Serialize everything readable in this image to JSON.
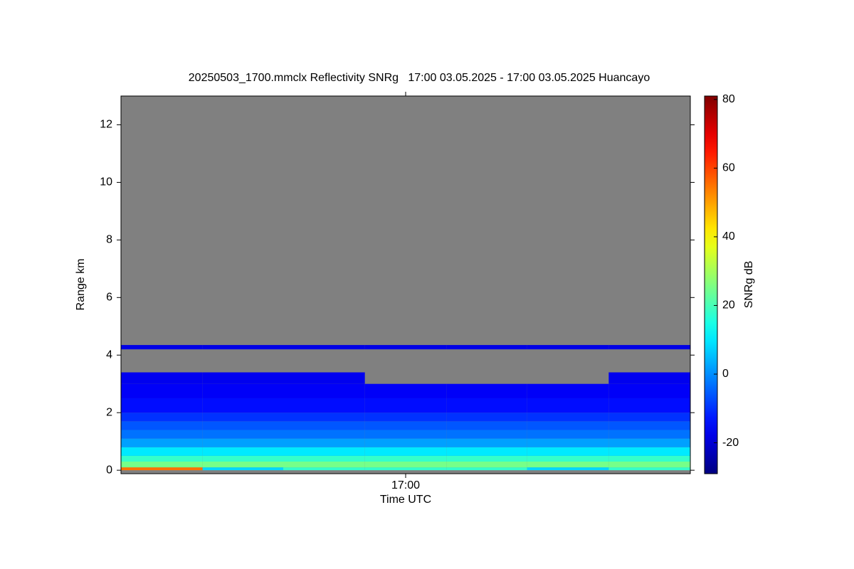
{
  "chart_data": {
    "type": "heatmap",
    "title": "20250503_1700.mmclx Reflectivity SNRg   17:00 03.05.2025 - 17:00 03.05.2025 Huancayo",
    "xlabel": "Time UTC",
    "ylabel": "Range km",
    "colorbar_label": "SNRg dB",
    "colormap": "jet",
    "missing_color": "#808080",
    "xlim": [
      61170,
      61230
    ],
    "xticks": [
      {
        "value": 61200,
        "label": "17:00"
      }
    ],
    "ylim": [
      -0.12,
      13
    ],
    "yticks": [
      0,
      2,
      4,
      6,
      8,
      10,
      12
    ],
    "clim": [
      -29,
      81
    ],
    "cticks": [
      -20,
      0,
      20,
      40,
      60,
      80
    ],
    "x": [
      61170,
      61178.6,
      61187.1,
      61195.7,
      61204.3,
      61212.8,
      61221.4,
      61230
    ],
    "y": [
      0,
      0.1,
      0.3,
      0.5,
      0.8,
      1.1,
      1.4,
      1.7,
      2.0,
      2.5,
      3.0,
      3.4,
      4.2,
      4.35
    ],
    "z": [
      [
        55,
        25,
        18,
        10,
        2,
        -3,
        -6,
        -10,
        -14,
        -16,
        -17,
        null,
        -18
      ],
      [
        8,
        25,
        18,
        10,
        2,
        -3,
        -6,
        -10,
        -14,
        -16,
        -17,
        null,
        -18
      ],
      [
        18,
        25,
        18,
        10,
        2,
        -3,
        -6,
        -10,
        -14,
        -16,
        -17,
        null,
        -18
      ],
      [
        18,
        25,
        18,
        10,
        2,
        -3,
        -6,
        -10,
        -14,
        -16,
        null,
        null,
        -18
      ],
      [
        18,
        25,
        18,
        10,
        2,
        -3,
        -6,
        -10,
        -14,
        -16,
        null,
        null,
        -18
      ],
      [
        8,
        25,
        18,
        10,
        2,
        -3,
        -6,
        -10,
        -14,
        -16,
        null,
        null,
        -18
      ],
      [
        18,
        25,
        18,
        10,
        2,
        -3,
        -6,
        -10,
        -14,
        -16,
        -17,
        null,
        -18
      ]
    ]
  }
}
